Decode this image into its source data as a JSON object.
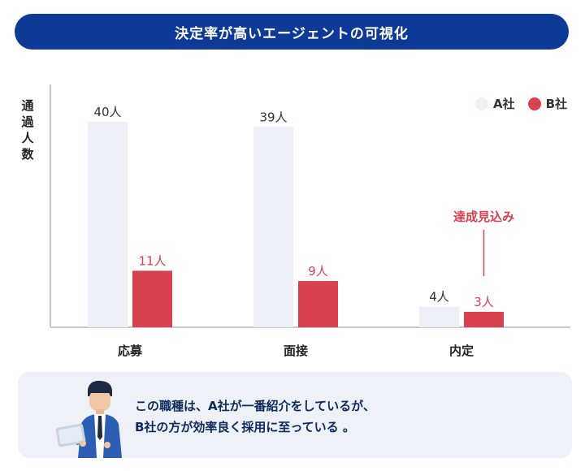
{
  "title": "決定率が高いエージェントの可視化",
  "ylabel_chars": [
    "通",
    "過",
    "人",
    "数"
  ],
  "legend": [
    {
      "label": "A社",
      "color": "#edf0f7"
    },
    {
      "label": "B社",
      "color": "#d8424f"
    }
  ],
  "annotation": {
    "text": "達成見込み",
    "color": "#d8424f"
  },
  "note": {
    "line1": "この職種は、A社が一番紹介をしているが、",
    "line2": "B社の方が効率良く採用に至っている 。"
  },
  "chart_data": {
    "type": "bar",
    "categories": [
      "応募",
      "面接",
      "内定"
    ],
    "series": [
      {
        "name": "A社",
        "values": [
          40,
          39,
          4
        ],
        "labels": [
          "40人",
          "39人",
          "4人"
        ],
        "color": "#edf0f7"
      },
      {
        "name": "B社",
        "values": [
          11,
          9,
          3
        ],
        "labels": [
          "11人",
          "9人",
          "3人"
        ],
        "color": "#d8424f"
      }
    ],
    "ylabel": "通過人数",
    "ylim": [
      0,
      46
    ],
    "grid": false,
    "legend_position": "top-right"
  }
}
